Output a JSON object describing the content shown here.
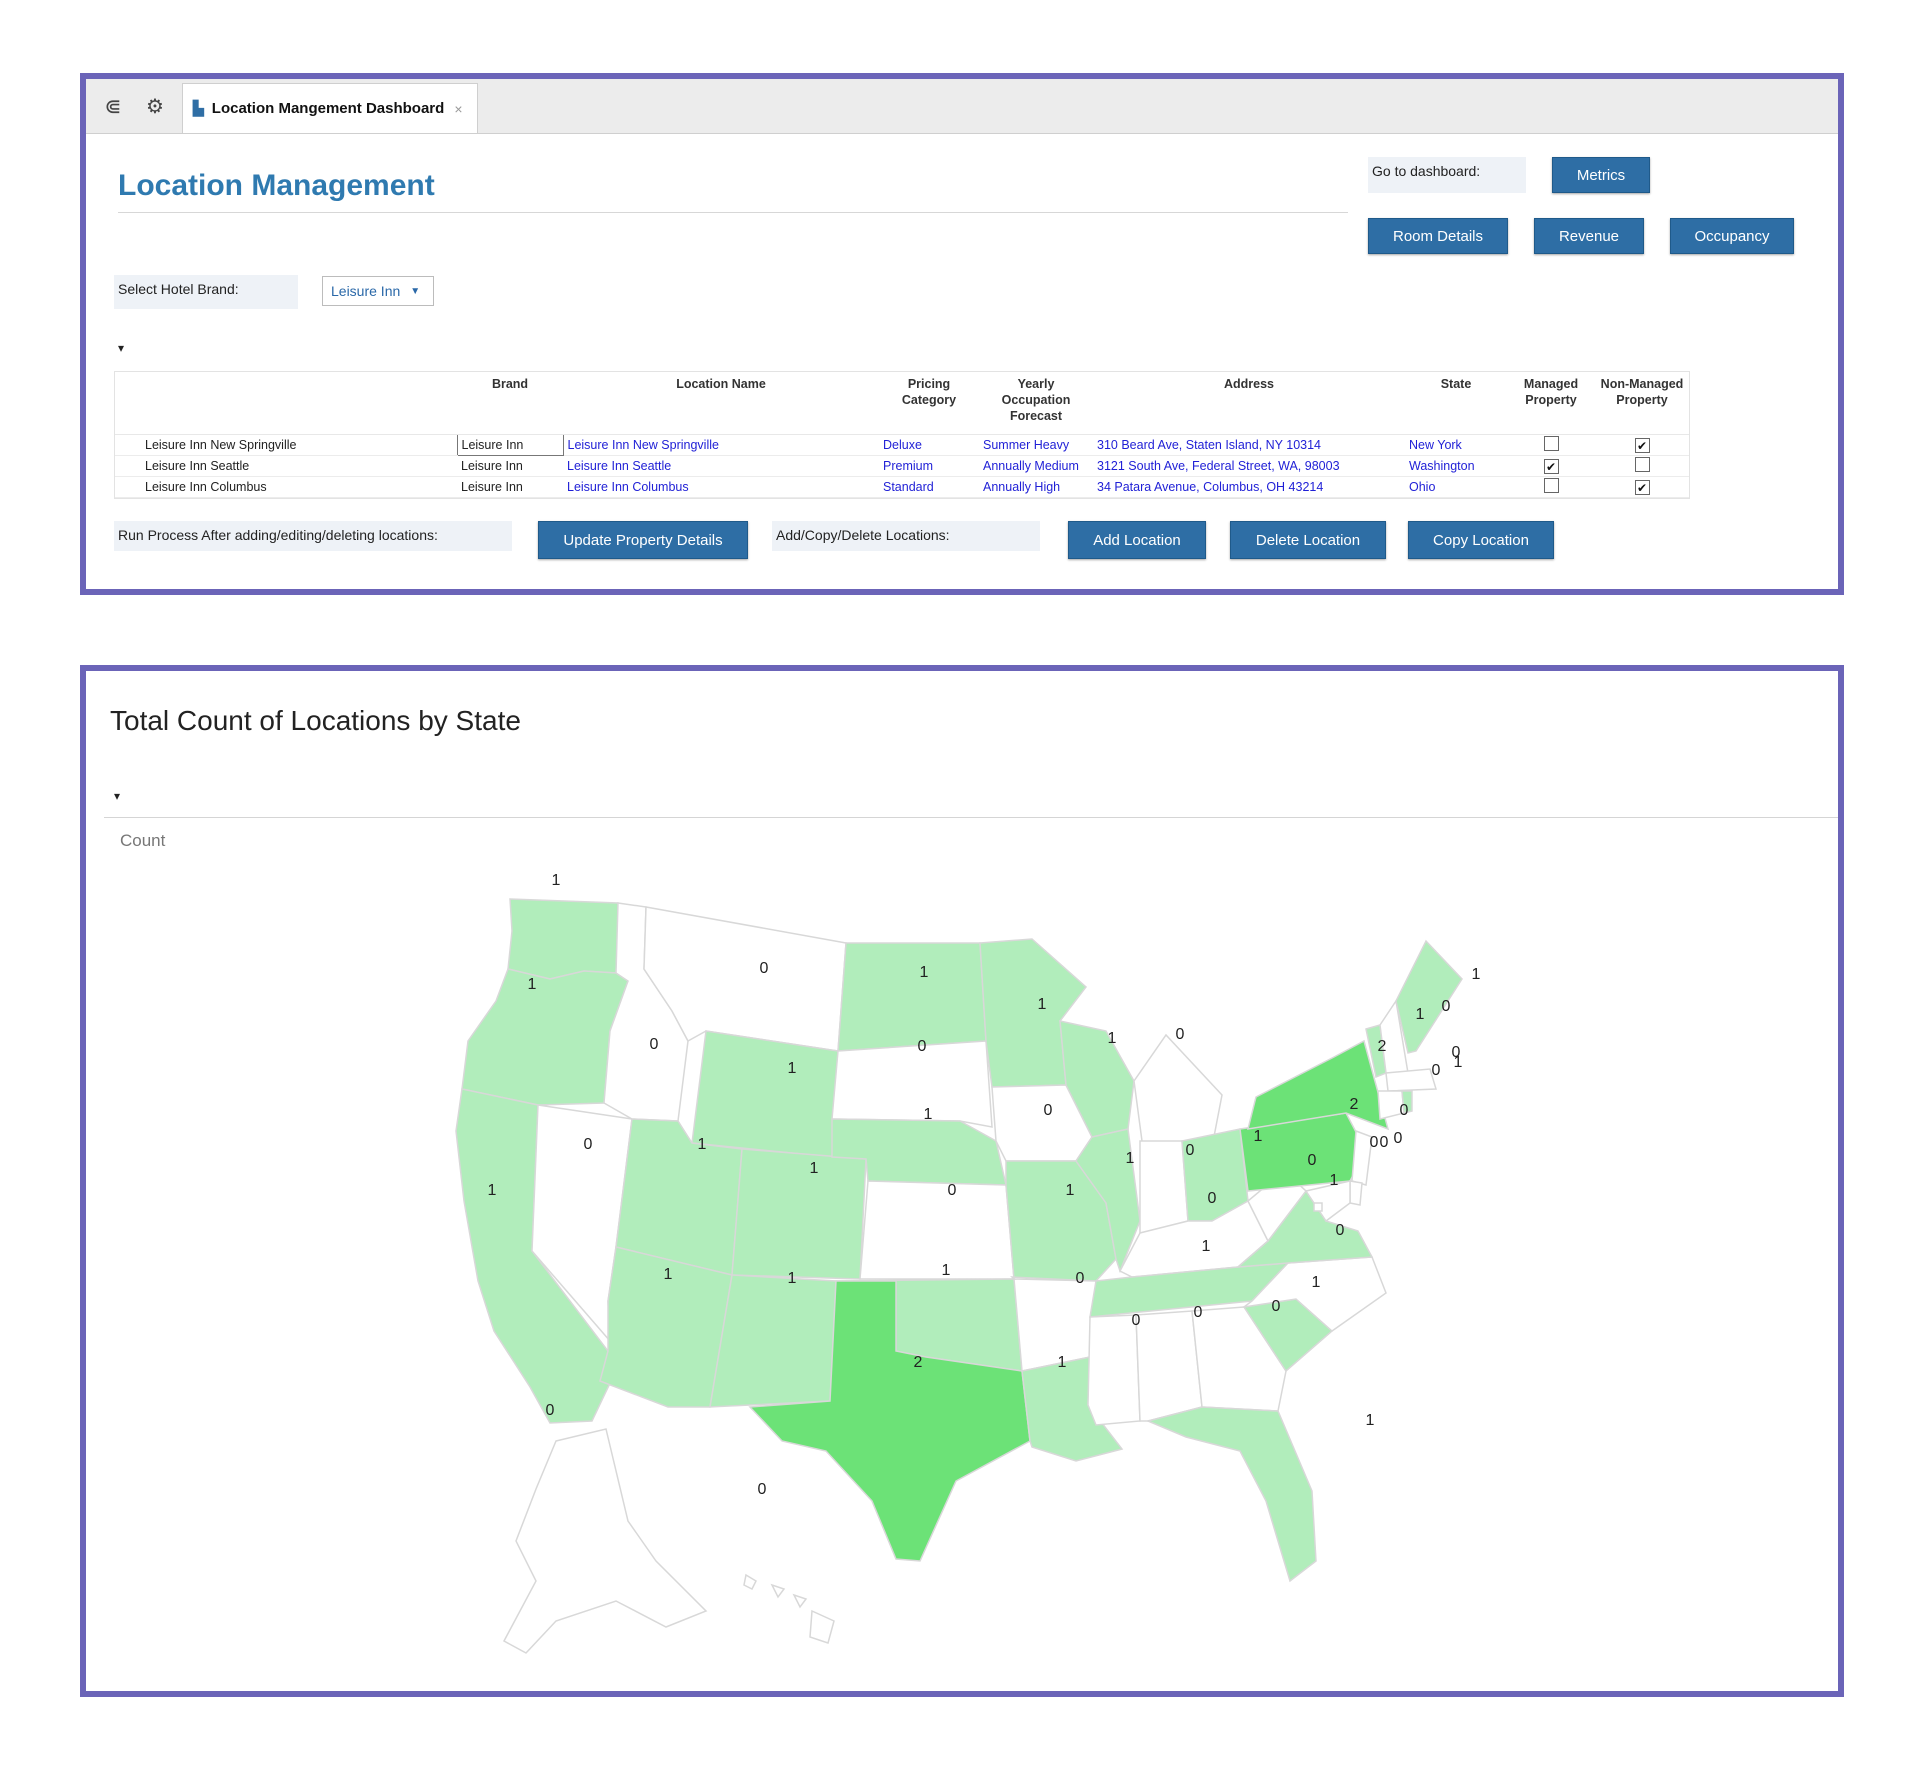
{
  "tab": {
    "title": "Location Mangement Dashboard",
    "close": "×"
  },
  "icons": {
    "hierarchy": "hierarchy-icon",
    "gear": "gear-icon",
    "doc": "dashboard-doc-icon"
  },
  "header": {
    "title": "Location Management"
  },
  "dashboard_nav": {
    "label": "Go to dashboard:",
    "buttons": {
      "metrics": "Metrics",
      "room_details": "Room Details",
      "revenue": "Revenue",
      "occupancy": "Occupancy"
    }
  },
  "brand_select": {
    "label": "Select Hotel Brand:",
    "value": "Leisure Inn",
    "caret": "▼"
  },
  "collapse_glyph": "▾",
  "table": {
    "headers": {
      "brand": "Brand",
      "location_name": "Location Name",
      "pricing_l1": "Pricing",
      "pricing_l2": "Category",
      "yearly_l1": "Yearly",
      "yearly_l2": "Occupation",
      "yearly_l3": "Forecast",
      "address": "Address",
      "state": "State",
      "managed_l1": "Managed",
      "managed_l2": "Property",
      "nonmanaged_l1": "Non-Managed",
      "nonmanaged_l2": "Property"
    },
    "rows": [
      {
        "row_label": "Leisure Inn New Springville",
        "brand": "Leisure Inn",
        "location_name": "Leisure Inn New Springville",
        "pricing": "Deluxe",
        "forecast": "Summer Heavy",
        "address": "310 Beard Ave, Staten Island, NY 10314",
        "state": "New York",
        "managed": false,
        "non_managed": true
      },
      {
        "row_label": "Leisure Inn Seattle",
        "brand": "Leisure Inn",
        "location_name": "Leisure Inn Seattle",
        "pricing": "Premium",
        "forecast": "Annually Medium",
        "address": "3121 South Ave, Federal Street, WA, 98003",
        "state": "Washington",
        "managed": true,
        "non_managed": false
      },
      {
        "row_label": "Leisure Inn Columbus",
        "brand": "Leisure Inn",
        "location_name": "Leisure Inn Columbus",
        "pricing": "Standard",
        "forecast": "Annually High",
        "address": "34 Patara Avenue, Columbus, OH 43214",
        "state": "Ohio",
        "managed": false,
        "non_managed": true
      }
    ]
  },
  "actions": {
    "run_label": "Run Process After adding/editing/deleting locations:",
    "update_button": "Update Property Details",
    "acd_label": "Add/Copy/Delete Locations:",
    "add_button": "Add Location",
    "delete_button": "Delete Location",
    "copy_button": "Copy Location"
  },
  "map": {
    "title": "Total Count of Locations by State",
    "legend_label": "Count",
    "colors": {
      "0": "#ffffff",
      "1": "#b1edbb",
      "2": "#6ce277",
      "border": "#d8d8d8"
    },
    "chart_data": {
      "type": "choropleth",
      "metric": "Count",
      "states": {
        "WA": 1,
        "OR": 1,
        "CA": 1,
        "NV": 0,
        "ID": 0,
        "MT": 0,
        "WY": 1,
        "UT": 1,
        "AZ": 1,
        "CO": 1,
        "NM": 1,
        "ND": 1,
        "SD": 0,
        "NE": 1,
        "KS": 0,
        "OK": 1,
        "TX": 2,
        "MN": 1,
        "IA": 0,
        "MO": 1,
        "AR": 0,
        "LA": 1,
        "WI": 1,
        "IL": 1,
        "MI": 0,
        "IN": 0,
        "OH": 1,
        "KY": 0,
        "TN": 1,
        "MS": 0,
        "AL": 0,
        "GA": 0,
        "FL": 1,
        "SC": 1,
        "NC": 0,
        "VA": 1,
        "WV": 0,
        "PA": 2,
        "NY": 2,
        "VT": 1,
        "NH": 0,
        "ME": 1,
        "MA": 0,
        "CT": 0,
        "RI": 1,
        "NJ": 0,
        "DE": 0,
        "MD": 0,
        "DC": 0,
        "AK": 0,
        "HI": 0
      }
    }
  }
}
